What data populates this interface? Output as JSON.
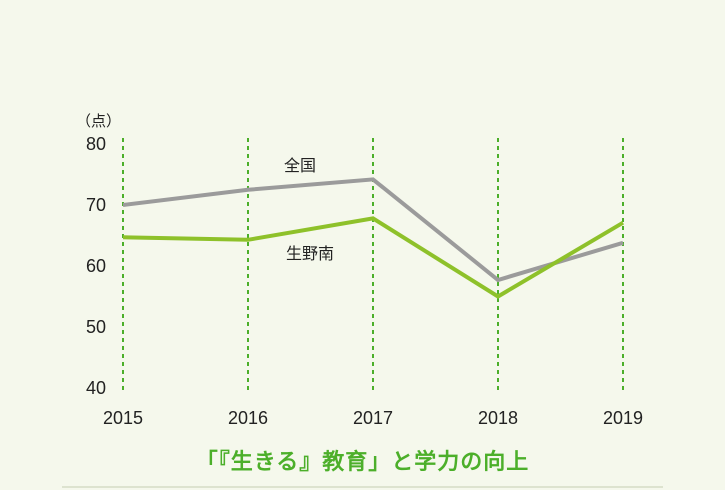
{
  "chart_data": {
    "type": "line",
    "x": [
      "2015",
      "2016",
      "2017",
      "2018",
      "2019"
    ],
    "y_unit": "（点）",
    "ylim": [
      40,
      80
    ],
    "yticks": [
      80,
      70,
      60,
      50,
      40
    ],
    "grid": "vertical dashed",
    "series": [
      {
        "name": "全国",
        "values": [
          70.0,
          72.5,
          74.2,
          57.7,
          63.8
        ],
        "color": "#9b9b9b"
      },
      {
        "name": "生野南",
        "values": [
          64.7,
          64.3,
          67.8,
          55.0,
          67.1
        ],
        "color": "#8ec12a"
      }
    ],
    "caption": "「『生きる』教育」と学力の向上"
  },
  "colors": {
    "grid": "#4caf2a",
    "caption": "#4caf2a"
  }
}
